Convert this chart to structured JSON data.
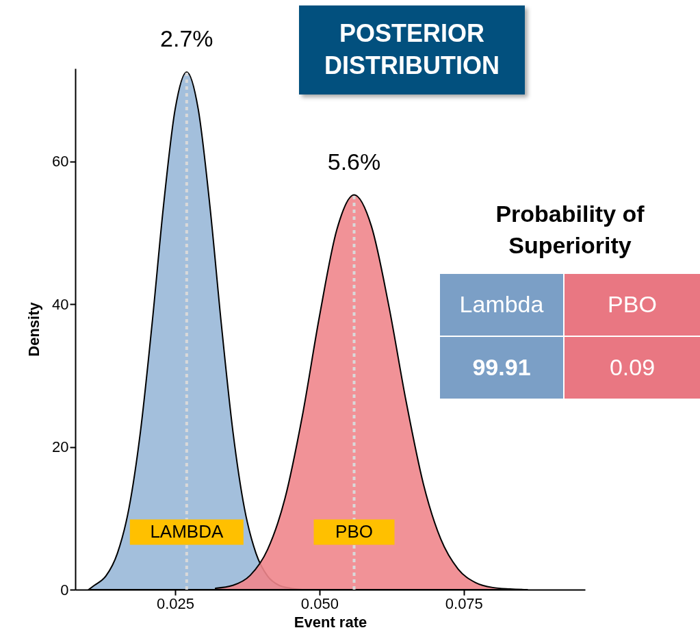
{
  "chart_data": {
    "type": "area",
    "title": "POSTERIOR DISTRIBUTION",
    "xlabel": "Event rate",
    "ylabel": "Density",
    "series": [
      {
        "name": "LAMBDA",
        "color": "#99b8d8",
        "x": [
          0.01,
          0.011,
          0.013,
          0.015,
          0.017,
          0.019,
          0.021,
          0.023,
          0.025,
          0.027,
          0.029,
          0.031,
          0.033,
          0.035,
          0.037,
          0.039,
          0.041,
          0.043,
          0.045,
          0.047
        ],
        "values": [
          0,
          0.6,
          1.9,
          5.1,
          11.4,
          22.2,
          37.2,
          53.9,
          67.3,
          72.5,
          67.3,
          53.9,
          37.2,
          22.2,
          11.4,
          5.1,
          1.9,
          0.6,
          0.2,
          0
        ]
      },
      {
        "name": "PBO",
        "color": "#f0868c",
        "x": [
          0.032,
          0.035,
          0.038,
          0.041,
          0.044,
          0.047,
          0.05,
          0.053,
          0.056,
          0.059,
          0.062,
          0.065,
          0.068,
          0.071,
          0.074,
          0.077,
          0.08,
          0.083,
          0.086
        ],
        "values": [
          0.2,
          0.6,
          2.0,
          5.6,
          12.7,
          24.2,
          38.3,
          50.4,
          55.3,
          50.9,
          39.8,
          26.4,
          14.8,
          7.1,
          2.9,
          1.0,
          0.3,
          0.1,
          0
        ]
      }
    ],
    "ref_lines": [
      {
        "axis": "x",
        "value": 0.027,
        "label": "2.7%",
        "color": "#d9d9d9",
        "line_style": "dotted"
      },
      {
        "axis": "x",
        "value": 0.056,
        "label": "5.6%",
        "color": "#d9d9d9",
        "line_style": "dotted"
      }
    ],
    "annotations": [
      "Probability of Superiority",
      "Lambda",
      "PBO",
      "99.91",
      "0.09"
    ],
    "xlim": [
      0.0077,
      0.096
    ],
    "xticks": [
      {
        "value": 0.025,
        "label": "0.025"
      },
      {
        "value": 0.05,
        "label": "0.050"
      },
      {
        "value": 0.075,
        "label": "0.075"
      }
    ],
    "ylim": [
      0,
      73
    ],
    "yticks": [
      0,
      20,
      40,
      60
    ]
  }
}
